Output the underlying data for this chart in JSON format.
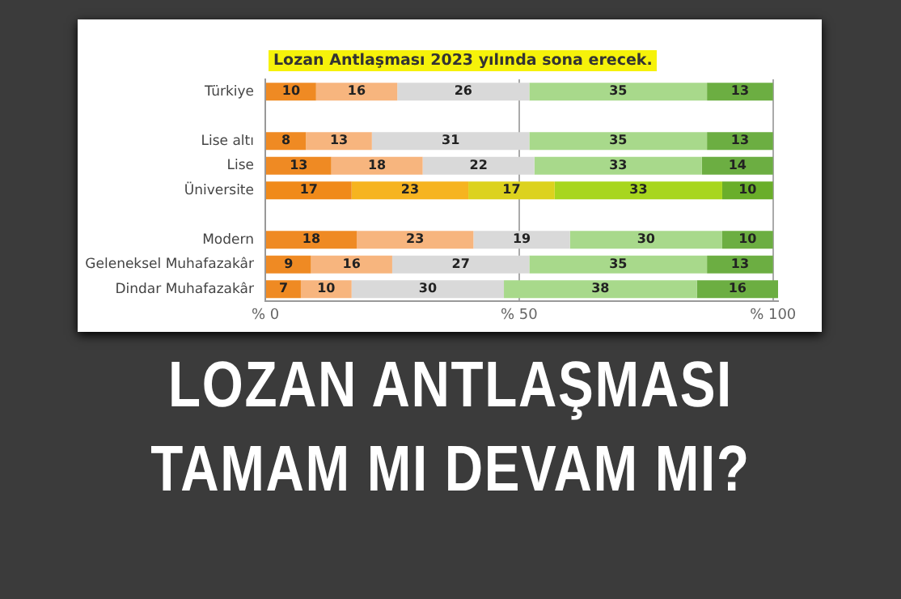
{
  "chart_data": {
    "type": "bar",
    "orientation": "horizontal",
    "stacked": true,
    "title": "Lozan Antlaşması 2023 yılında sona erecek.",
    "categories": [
      "Türkiye",
      null,
      "Lise altı",
      "Lise",
      "Üniversite",
      null,
      "Modern",
      "Geleneksel Muhafazakâr",
      "Dindar Muhafazakâr"
    ],
    "series": [
      {
        "colors": [
          "#ef8a23",
          "#ef8a23",
          "#ef8a23",
          "#ef8a23",
          "#f08a1a",
          "#ef8a23",
          "#ef8a23",
          "#ef8a23",
          "#ef8a23"
        ],
        "values": [
          10,
          null,
          8,
          13,
          17,
          null,
          18,
          9,
          7
        ]
      },
      {
        "colors": [
          "#f7b57e",
          "#f7b57e",
          "#f7b57e",
          "#f7b57e",
          "#f6b420",
          "#f7b57e",
          "#f7b57e",
          "#f7b57e",
          "#f7b57e"
        ],
        "values": [
          16,
          null,
          13,
          18,
          23,
          null,
          23,
          16,
          10
        ]
      },
      {
        "colors": [
          "#d9d9d9",
          "#d9d9d9",
          "#d9d9d9",
          "#d9d9d9",
          "#dcd21e",
          "#d9d9d9",
          "#d9d9d9",
          "#d9d9d9",
          "#d9d9d9"
        ],
        "values": [
          26,
          null,
          31,
          22,
          17,
          null,
          19,
          27,
          30
        ]
      },
      {
        "colors": [
          "#a8d98b",
          "#a8d98b",
          "#a8d98b",
          "#a8d98b",
          "#a8d61e",
          "#a8d98b",
          "#a8d98b",
          "#a8d98b",
          "#a8d98b"
        ],
        "values": [
          35,
          null,
          35,
          33,
          33,
          null,
          30,
          35,
          38
        ]
      },
      {
        "colors": [
          "#6cae42",
          "#6cae42",
          "#6cae42",
          "#6cae42",
          "#6aae2a",
          "#6cae42",
          "#6cae42",
          "#6cae42",
          "#6cae42"
        ],
        "values": [
          13,
          null,
          13,
          14,
          10,
          null,
          10,
          13,
          16
        ]
      }
    ],
    "xlim": [
      0,
      101
    ],
    "xticks": [
      {
        "value": 0,
        "label": "% 0"
      },
      {
        "value": 50,
        "label": "% 50"
      },
      {
        "value": 100,
        "label": "% 100"
      }
    ],
    "grid": "x",
    "legend": false,
    "data_labels": true,
    "annotations": [
      "LOZAN ANTLAŞMASI\nTAMAM MI DEVAM MI?"
    ]
  }
}
